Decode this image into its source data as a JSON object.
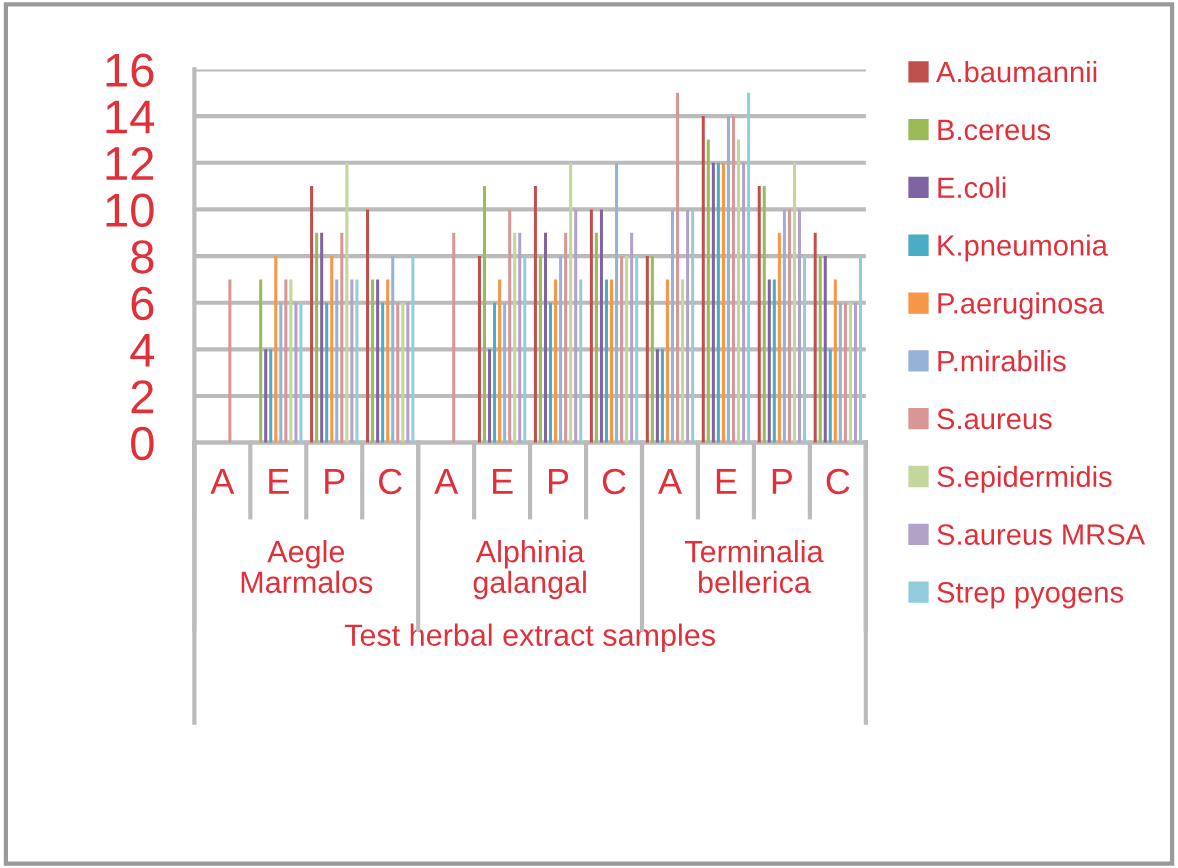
{
  "chart_data": {
    "type": "bar",
    "xlabel": "Test herbal extract samples",
    "categories": [
      "A",
      "E",
      "P",
      "C",
      "A",
      "E",
      "P",
      "C",
      "A",
      "E",
      "P",
      "C"
    ],
    "annotations": [
      "Aegle\nMarmalos",
      "Alphinia\ngalangal",
      "Terminalia\nbellerica"
    ],
    "ylim": [
      0,
      16
    ],
    "yticks": [
      0,
      2,
      4,
      6,
      8,
      10,
      12,
      14,
      16
    ],
    "grid": "y",
    "legend": "right",
    "series": [
      {
        "name": "A.baumannii",
        "color": "#c0504d",
        "values": [
          0,
          0,
          11,
          10,
          0,
          8,
          11,
          10,
          8,
          14,
          11,
          9
        ]
      },
      {
        "name": "B.cereus",
        "color": "#9bbb59",
        "values": [
          0,
          7,
          9,
          7,
          0,
          11,
          8,
          9,
          8,
          13,
          11,
          8
        ]
      },
      {
        "name": "E.coli",
        "color": "#8064a2",
        "values": [
          0,
          4,
          9,
          7,
          0,
          4,
          9,
          10,
          4,
          12,
          7,
          8
        ]
      },
      {
        "name": "K.pneumonia",
        "color": "#4bacc6",
        "values": [
          0,
          4,
          6,
          6,
          0,
          6,
          6,
          7,
          4,
          12,
          7,
          4
        ]
      },
      {
        "name": "P.aeruginosa",
        "color": "#f79646",
        "values": [
          0,
          8,
          8,
          7,
          0,
          7,
          7,
          7,
          7,
          12,
          9,
          7
        ]
      },
      {
        "name": "P.mirabilis",
        "color": "#95b3d7",
        "values": [
          0,
          6,
          7,
          8,
          0,
          6,
          8,
          12,
          10,
          14,
          10,
          6
        ]
      },
      {
        "name": "S.aureus",
        "color": "#d99694",
        "values": [
          7,
          7,
          9,
          6,
          9,
          10,
          9,
          8,
          15,
          14,
          10,
          6
        ]
      },
      {
        "name": "S.epidermidis",
        "color": "#c3d69b",
        "values": [
          0,
          7,
          12,
          6,
          0,
          9,
          12,
          8,
          7,
          13,
          12,
          6
        ]
      },
      {
        "name": "S.aureus MRSA",
        "color": "#b3a2c7",
        "values": [
          0,
          6,
          7,
          6,
          0,
          9,
          10,
          9,
          10,
          12,
          10,
          6
        ]
      },
      {
        "name": "Strep pyogens",
        "color": "#93cddd",
        "values": [
          0,
          6,
          7,
          8,
          0,
          8,
          7,
          8,
          10,
          15,
          8,
          8
        ]
      }
    ]
  }
}
